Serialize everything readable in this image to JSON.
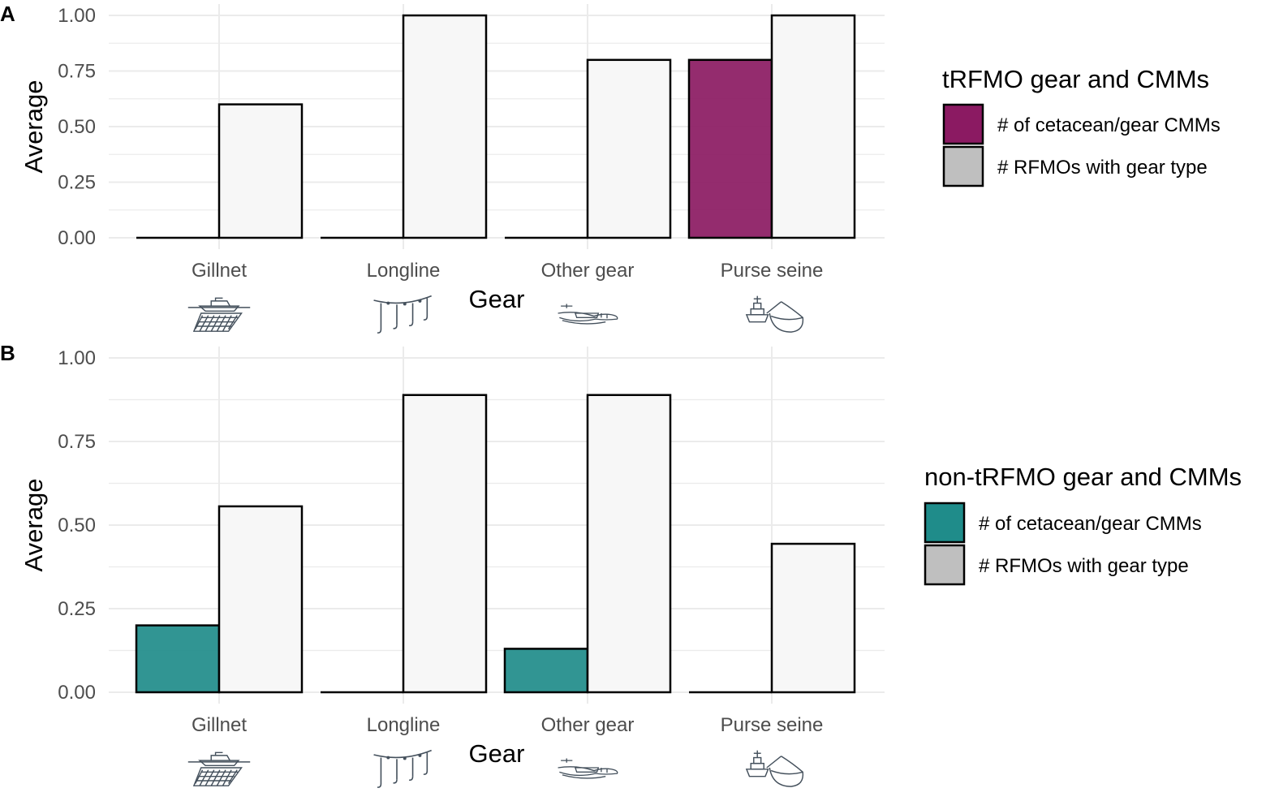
{
  "chart_data": [
    {
      "type": "bar",
      "panel": "A",
      "categories": [
        "Gillnet",
        "Longline",
        "Other gear",
        "Purse seine"
      ],
      "series": [
        {
          "name": "# of cetacean/gear CMMs",
          "values": [
            0.0,
            0.0,
            0.0,
            0.8
          ]
        },
        {
          "name": "# RFMOs with gear type",
          "values": [
            0.6,
            1.0,
            0.8,
            1.0
          ]
        }
      ],
      "ylim": [
        0,
        1
      ],
      "yticks": [
        "0.00",
        "0.25",
        "0.50",
        "0.75",
        "1.00"
      ],
      "xlabel": "Gear",
      "ylabel": "Average",
      "legend_title": "tRFMO gear and CMMs",
      "legend_position": "right",
      "grid": true,
      "colors": {
        "cmm": "#8b1a62",
        "rfmo": "#f7f7f7"
      }
    },
    {
      "type": "bar",
      "panel": "B",
      "categories": [
        "Gillnet",
        "Longline",
        "Other gear",
        "Purse seine"
      ],
      "series": [
        {
          "name": "# of cetacean/gear CMMs",
          "values": [
            0.2,
            0.0,
            0.13,
            0.0
          ]
        },
        {
          "name": "# RFMOs with gear type",
          "values": [
            0.556,
            0.889,
            0.889,
            0.444
          ]
        }
      ],
      "ylim": [
        0,
        1
      ],
      "yticks": [
        "0.00",
        "0.25",
        "0.50",
        "0.75",
        "1.00"
      ],
      "xlabel": "Gear",
      "ylabel": "Average",
      "legend_title": "non-tRFMO gear and CMMs",
      "legend_position": "right",
      "grid": true,
      "colors": {
        "cmm": "#1f8c8a",
        "rfmo": "#f7f7f7"
      }
    }
  ],
  "legend_swatch_colors": {
    "rfmo": "#bfbfbf"
  },
  "gear_icons": [
    "gillnet-boat-icon",
    "longline-hooks-icon",
    "other-gear-trawl-icon",
    "purse-seine-ship-icon"
  ]
}
